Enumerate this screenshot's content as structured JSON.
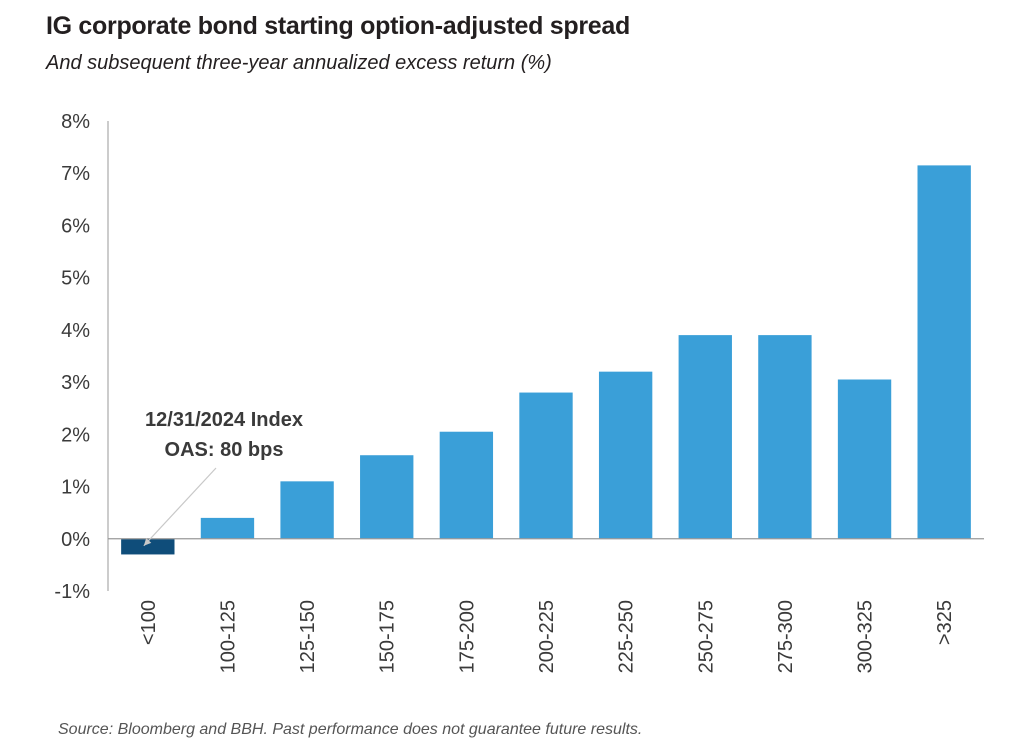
{
  "header": {
    "title": "IG corporate bond starting option-adjusted spread",
    "subtitle": "And subsequent three-year annualized excess return (%)"
  },
  "footer": {
    "source": "Source: Bloomberg and BBH. Past performance does not guarantee future results."
  },
  "chart_data": {
    "type": "bar",
    "title": "IG corporate bond starting option-adjusted spread",
    "subtitle": "And subsequent three-year annualized excess return (%)",
    "categories": [
      "<100",
      "100-125",
      "125-150",
      "150-175",
      "175-200",
      "200-225",
      "225-250",
      "250-275",
      "275-300",
      "300-325",
      ">325"
    ],
    "values": [
      -0.3,
      0.4,
      1.1,
      1.6,
      2.05,
      2.8,
      3.2,
      3.9,
      3.9,
      3.05,
      7.15
    ],
    "ylim": [
      -1,
      8
    ],
    "yticks": [
      "-1%",
      "0%",
      "1%",
      "2%",
      "3%",
      "4%",
      "5%",
      "6%",
      "7%",
      "8%"
    ],
    "ytick_values": [
      -1,
      0,
      1,
      2,
      3,
      4,
      5,
      6,
      7,
      8
    ],
    "grid": false,
    "colors": {
      "bar": "#3a9fd8",
      "highlight": "#0f4d7a",
      "axis": "#9a9a9a"
    },
    "highlight_index": 0,
    "annotation": {
      "lines": [
        "12/31/2024 Index",
        "OAS: 80 bps"
      ],
      "target_index": 0
    }
  }
}
